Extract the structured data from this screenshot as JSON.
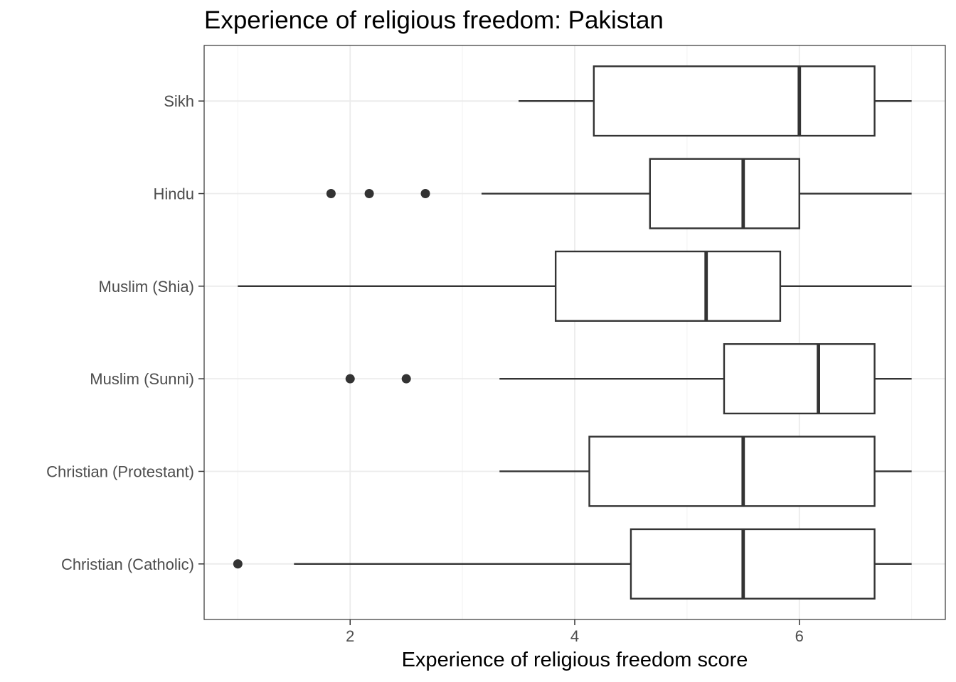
{
  "chart_data": {
    "type": "boxplot",
    "orientation": "horizontal",
    "title": "Experience of religious freedom: Pakistan",
    "xlabel": "Experience of religious freedom score",
    "ylabel": "",
    "xlim": [
      0.7,
      7.3
    ],
    "x_ticks": [
      2,
      4,
      6
    ],
    "x_minor_ticks": [
      1,
      3,
      5,
      7
    ],
    "grid": true,
    "theme": "bw",
    "colors": {
      "box_fill": "#ffffff",
      "box_stroke": "#333333",
      "outlier": "#333333",
      "grid_major": "#ebebeb",
      "grid_minor": "#f2f2f2",
      "panel_border": "#333333"
    },
    "categories": [
      "Sikh",
      "Hindu",
      "Muslim (Shia)",
      "Muslim (Sunni)",
      "Christian (Protestant)",
      "Christian (Catholic)"
    ],
    "boxes": [
      {
        "category": "Sikh",
        "whisker_low": 3.5,
        "q1": 4.17,
        "median": 6.0,
        "q3": 6.67,
        "whisker_high": 7.0,
        "outliers": []
      },
      {
        "category": "Hindu",
        "whisker_low": 3.17,
        "q1": 4.67,
        "median": 5.5,
        "q3": 6.0,
        "whisker_high": 7.0,
        "outliers": [
          1.83,
          2.17,
          2.67
        ]
      },
      {
        "category": "Muslim (Shia)",
        "whisker_low": 1.0,
        "q1": 3.83,
        "median": 5.17,
        "q3": 5.83,
        "whisker_high": 7.0,
        "outliers": []
      },
      {
        "category": "Muslim (Sunni)",
        "whisker_low": 3.33,
        "q1": 5.33,
        "median": 6.17,
        "q3": 6.67,
        "whisker_high": 7.0,
        "outliers": [
          2.0,
          2.5
        ]
      },
      {
        "category": "Christian (Protestant)",
        "whisker_low": 3.33,
        "q1": 4.13,
        "median": 5.5,
        "q3": 6.67,
        "whisker_high": 7.0,
        "outliers": []
      },
      {
        "category": "Christian (Catholic)",
        "whisker_low": 1.5,
        "q1": 4.5,
        "median": 5.5,
        "q3": 6.67,
        "whisker_high": 7.0,
        "outliers": [
          1.0
        ]
      }
    ]
  }
}
